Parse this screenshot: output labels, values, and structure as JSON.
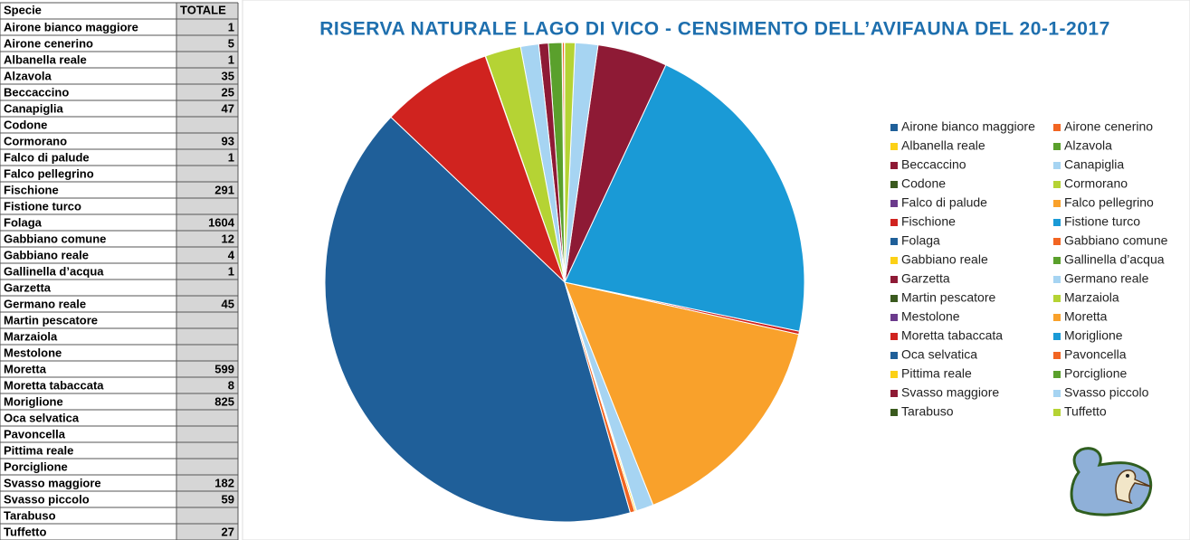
{
  "table": {
    "header": [
      "Specie",
      "TOTALE"
    ]
  },
  "chart_data": {
    "type": "pie",
    "title": "RISERVA NATURALE LAGO DI VICO - CENSIMENTO DELL’AVIFAUNA DEL 20-1-2017",
    "categories": [
      "Airone bianco maggiore",
      "Airone cenerino",
      "Albanella reale",
      "Alzavola",
      "Beccaccino",
      "Canapiglia",
      "Codone",
      "Cormorano",
      "Falco di palude",
      "Falco pellegrino",
      "Fischione",
      "Fistione turco",
      "Folaga",
      "Gabbiano comune",
      "Gabbiano reale",
      "Gallinella d’acqua",
      "Garzetta",
      "Germano reale",
      "Martin pescatore",
      "Marzaiola",
      "Mestolone",
      "Moretta",
      "Moretta tabaccata",
      "Moriglione",
      "Oca selvatica",
      "Pavoncella",
      "Pittima reale",
      "Porciglione",
      "Svasso maggiore",
      "Svasso piccolo",
      "Tarabuso",
      "Tuffetto"
    ],
    "values": [
      1,
      5,
      1,
      35,
      25,
      47,
      null,
      93,
      1,
      null,
      291,
      null,
      1604,
      12,
      4,
      1,
      null,
      45,
      null,
      null,
      null,
      599,
      8,
      825,
      null,
      null,
      null,
      null,
      182,
      59,
      null,
      27
    ],
    "colors": [
      "#1f5f99",
      "#f26522",
      "#fcd116",
      "#5aa02c",
      "#8e1a35",
      "#a6d4f2",
      "#3a5a1e",
      "#b5d334",
      "#6b3a8c",
      "#f9a12b",
      "#d0231f",
      "#1a9ad6",
      "#1f5f99",
      "#f26522",
      "#fcd116",
      "#5aa02c",
      "#8e1a35",
      "#a6d4f2",
      "#3a5a1e",
      "#b5d334",
      "#6b3a8c",
      "#f9a12b",
      "#d0231f",
      "#1a9ad6",
      "#1f5f99",
      "#f26522",
      "#fcd116",
      "#5aa02c",
      "#8e1a35",
      "#a6d4f2",
      "#3a5a1e",
      "#b5d334"
    ]
  }
}
